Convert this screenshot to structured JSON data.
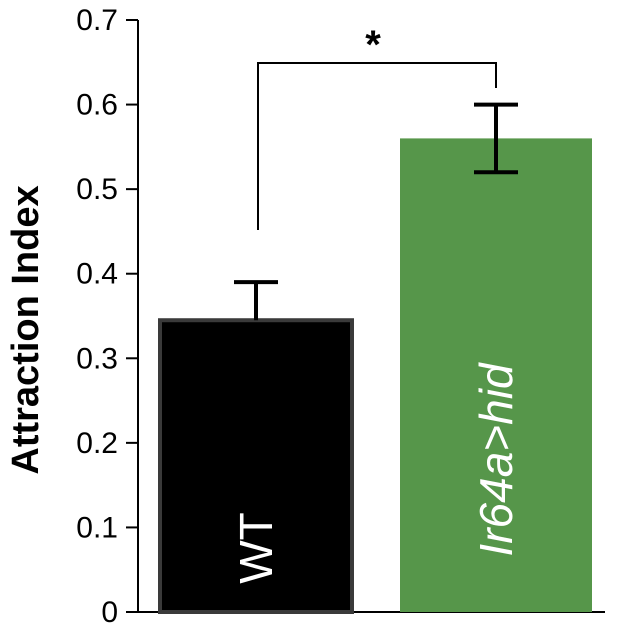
{
  "chart_data": {
    "type": "bar",
    "ylabel": "Attraction Index",
    "xlabel": "",
    "ylim": [
      0,
      0.7
    ],
    "yticks": [
      0,
      0.1,
      0.2,
      0.3,
      0.4,
      0.5,
      0.6,
      0.7
    ],
    "ytick_labels": [
      "0",
      "0.1",
      "0.2",
      "0.3",
      "0.4",
      "0.5",
      "0.6",
      "0.7"
    ],
    "categories": [
      "WT",
      "Ir64a>hid"
    ],
    "values": [
      0.345,
      0.56
    ],
    "error_upper": [
      0.39,
      0.6
    ],
    "error_lower": [
      0.345,
      0.52
    ],
    "bar_colors": [
      "#000000",
      "#56964a"
    ],
    "bar_label_color": "#ffffff",
    "significance": {
      "label": "*",
      "between": [
        0,
        1
      ]
    },
    "grid": false
  }
}
